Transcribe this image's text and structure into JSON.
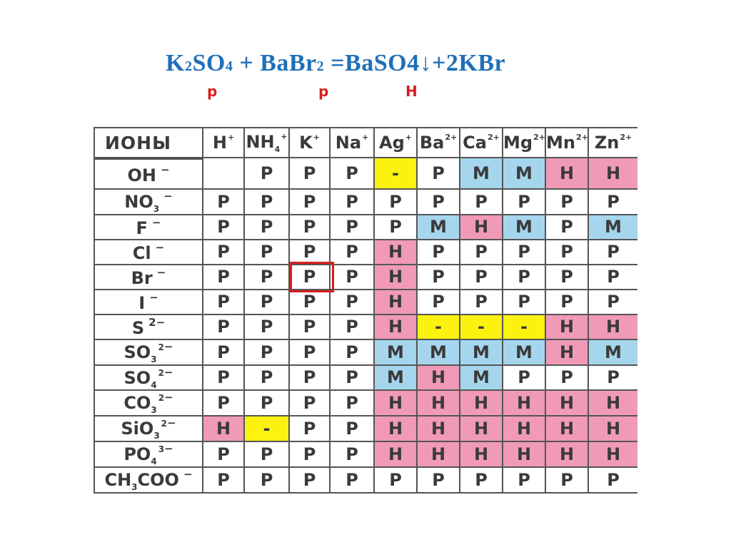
{
  "equation": {
    "k": "K",
    "k2": "2",
    "so": "SO",
    "o4": "4",
    "plus": " + BaBr",
    "br2": "2",
    "eq": " =BaSO",
    "so4": "4",
    "arrow": "↓",
    "rest": "+2KBr"
  },
  "marks": {
    "k2so4": "р",
    "babr2": "р",
    "baso4": "Н"
  },
  "table": {
    "corner": "ИОНЫ",
    "cations": [
      {
        "base": "H",
        "sup": "+",
        "sub": ""
      },
      {
        "base": "NH",
        "sup": "+",
        "sub": "4"
      },
      {
        "base": "K",
        "sup": "+",
        "sub": ""
      },
      {
        "base": "Na",
        "sup": "+",
        "sub": ""
      },
      {
        "base": "Ag",
        "sup": "+",
        "sub": ""
      },
      {
        "base": "Ba",
        "sup": "2+",
        "sub": ""
      },
      {
        "base": "Ca",
        "sup": "2+",
        "sub": ""
      },
      {
        "base": "Mg",
        "sup": "2+",
        "sub": ""
      },
      {
        "base": "Mn",
        "sup": "2+",
        "sub": ""
      },
      {
        "base": "Zn",
        "sup": "2+",
        "sub": ""
      }
    ],
    "rows": [
      {
        "anion": {
          "base": "OH",
          "sub": "",
          "sup": "",
          "charge": "−"
        },
        "cells": [
          "",
          "P",
          "P",
          "P",
          "-",
          "P",
          "M",
          "M",
          "H",
          "H"
        ],
        "colors": [
          "",
          "",
          "",
          "",
          "y",
          "",
          "b",
          "b",
          "p",
          "p"
        ]
      },
      {
        "anion": {
          "base": "NO",
          "sub": "3",
          "sup": "",
          "charge": "−"
        },
        "cells": [
          "P",
          "P",
          "P",
          "P",
          "P",
          "P",
          "P",
          "P",
          "P",
          "P"
        ],
        "colors": [
          "",
          "",
          "",
          "",
          "",
          "",
          "",
          "",
          "",
          ""
        ]
      },
      {
        "anion": {
          "base": "F",
          "sub": "",
          "sup": "",
          "charge": "−"
        },
        "cells": [
          "P",
          "P",
          "P",
          "P",
          "P",
          "M",
          "H",
          "M",
          "P",
          "M"
        ],
        "colors": [
          "",
          "",
          "",
          "",
          "",
          "b",
          "p",
          "b",
          "",
          "b"
        ]
      },
      {
        "anion": {
          "base": "Cl",
          "sub": "",
          "sup": "",
          "charge": "−"
        },
        "cells": [
          "P",
          "P",
          "P",
          "P",
          "H",
          "P",
          "P",
          "P",
          "P",
          "P"
        ],
        "colors": [
          "",
          "",
          "",
          "",
          "p",
          "",
          "",
          "",
          "",
          ""
        ]
      },
      {
        "anion": {
          "base": "Br",
          "sub": "",
          "sup": "",
          "charge": "−"
        },
        "cells": [
          "P",
          "P",
          "P",
          "P",
          "H",
          "P",
          "P",
          "P",
          "P",
          "P"
        ],
        "colors": [
          "",
          "",
          "",
          "",
          "p",
          "",
          "",
          "",
          "",
          ""
        ]
      },
      {
        "anion": {
          "base": "I",
          "sub": "",
          "sup": "",
          "charge": "−"
        },
        "cells": [
          "P",
          "P",
          "P",
          "P",
          "H",
          "P",
          "P",
          "P",
          "P",
          "P"
        ],
        "colors": [
          "",
          "",
          "",
          "",
          "p",
          "",
          "",
          "",
          "",
          ""
        ]
      },
      {
        "anion": {
          "base": "S",
          "sub": "",
          "sup": "",
          "charge": "2−"
        },
        "cells": [
          "P",
          "P",
          "P",
          "P",
          "H",
          "-",
          "-",
          "-",
          "H",
          "H"
        ],
        "colors": [
          "",
          "",
          "",
          "",
          "p",
          "y",
          "y",
          "y",
          "p",
          "p"
        ]
      },
      {
        "anion": {
          "base": "SO",
          "sub": "3",
          "sup": "2",
          "charge": "−"
        },
        "cells": [
          "P",
          "P",
          "P",
          "P",
          "M",
          "M",
          "M",
          "M",
          "H",
          "M"
        ],
        "colors": [
          "",
          "",
          "",
          "",
          "b",
          "b",
          "b",
          "b",
          "p",
          "b"
        ]
      },
      {
        "anion": {
          "base": "SO",
          "sub": "4",
          "sup": "2",
          "charge": "−"
        },
        "cells": [
          "P",
          "P",
          "P",
          "P",
          "M",
          "H",
          "M",
          "P",
          "P",
          "P"
        ],
        "colors": [
          "",
          "",
          "",
          "",
          "b",
          "p",
          "b",
          "",
          "",
          ""
        ]
      },
      {
        "anion": {
          "base": "CO",
          "sub": "3",
          "sup": "2",
          "charge": "−"
        },
        "cells": [
          "P",
          "P",
          "P",
          "P",
          "H",
          "H",
          "H",
          "H",
          "H",
          "H"
        ],
        "colors": [
          "",
          "",
          "",
          "",
          "p",
          "p",
          "p",
          "p",
          "p",
          "p"
        ]
      },
      {
        "anion": {
          "base": "SiO",
          "sub": "3",
          "sup": "2",
          "charge": "−"
        },
        "cells": [
          "H",
          "-",
          "P",
          "P",
          "H",
          "H",
          "H",
          "H",
          "H",
          "H"
        ],
        "colors": [
          "p",
          "y",
          "",
          "",
          "p",
          "p",
          "p",
          "p",
          "p",
          "p"
        ]
      },
      {
        "anion": {
          "base": "PO",
          "sub": "4",
          "sup": "3",
          "charge": "−"
        },
        "cells": [
          "P",
          "P",
          "P",
          "P",
          "H",
          "H",
          "H",
          "H",
          "H",
          "H"
        ],
        "colors": [
          "",
          "",
          "",
          "",
          "p",
          "p",
          "p",
          "p",
          "p",
          "p"
        ]
      },
      {
        "anion": {
          "base": "CH",
          "sub": "3",
          "sup": "",
          "charge": "−",
          "tail": "COO"
        },
        "cells": [
          "P",
          "P",
          "P",
          "P",
          "P",
          "P",
          "P",
          "P",
          "P",
          "P"
        ],
        "colors": [
          "",
          "",
          "",
          "",
          "",
          "",
          "",
          "",
          "",
          ""
        ]
      }
    ]
  },
  "colors": {
    "insoluble": "#f09ab8",
    "slightly": "#a6d6ee",
    "none": "#fbf20f",
    "equation": "#1f6fb8",
    "marks": "#d81e1e"
  }
}
